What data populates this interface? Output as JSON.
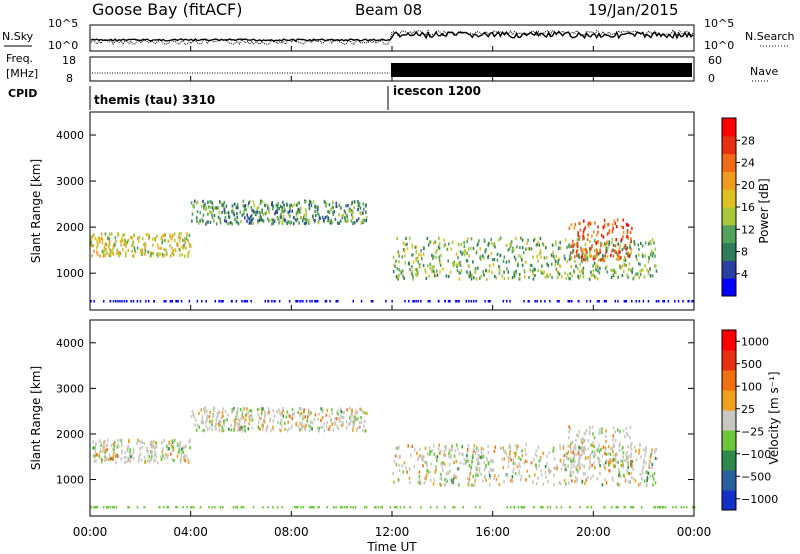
{
  "header": {
    "title": "Goose Bay (fitACF)",
    "beam": "Beam 08",
    "date": "19/Jan/2015"
  },
  "nsky_panel": {
    "left_label": "N.Sky",
    "right_label": "N.Search",
    "left_ticks": [
      "10^5",
      "10^0"
    ],
    "right_ticks": [
      "10^5",
      "10^0"
    ]
  },
  "freq_panel": {
    "left_label_line1": "Freq.",
    "left_label_line2": "[MHz]",
    "right_label": "Nave",
    "left_ticks": [
      "18",
      "8"
    ],
    "right_ticks": [
      "60",
      "0"
    ]
  },
  "cpid": {
    "label": "CPID",
    "segments": [
      {
        "name": "themis (tau) 3310",
        "start_hour": 0
      },
      {
        "name": "icescon 1200",
        "start_hour": 12
      }
    ]
  },
  "chart_data": [
    {
      "type": "heatmap",
      "panel": "power",
      "xlabel": "Time UT",
      "ylabel": "Slant Range [km]",
      "x_range_hours": [
        0,
        24
      ],
      "x_ticks": [
        "00:00",
        "04:00",
        "08:00",
        "12:00",
        "16:00",
        "20:00",
        "00:00"
      ],
      "y_range": [
        200,
        4500
      ],
      "y_ticks": [
        1000,
        2000,
        3000,
        4000
      ],
      "colorbar": {
        "label": "Power [dB]",
        "ticks": [
          "4",
          "8",
          "12",
          "16",
          "20",
          "24",
          "28"
        ],
        "colors": [
          "#0000ff",
          "#2a3fa0",
          "#2e7d58",
          "#52a05a",
          "#a8c83a",
          "#e0c020",
          "#f09a20",
          "#f06a18",
          "#e83010",
          "#ff0000"
        ]
      },
      "echo_bands": [
        {
          "name": "morning band",
          "hours": [
            0,
            4
          ],
          "range_km": [
            1400,
            1900
          ],
          "level_db": 14
        },
        {
          "name": "midday band",
          "hours": [
            4,
            11
          ],
          "range_km": [
            2100,
            2600
          ],
          "level_db": 8
        },
        {
          "name": "afternoon band",
          "hours": [
            12,
            22.5
          ],
          "range_km": [
            900,
            1800
          ],
          "level_db": 10
        },
        {
          "name": "strong patch",
          "hours": [
            19,
            21.5
          ],
          "range_km": [
            1300,
            2200
          ],
          "level_db": 22
        }
      ]
    },
    {
      "type": "heatmap",
      "panel": "velocity",
      "xlabel": "Time UT",
      "ylabel": "Slant Range [km]",
      "x_range_hours": [
        0,
        24
      ],
      "x_ticks": [
        "00:00",
        "04:00",
        "08:00",
        "12:00",
        "16:00",
        "20:00",
        "00:00"
      ],
      "y_range": [
        200,
        4500
      ],
      "y_ticks": [
        1000,
        2000,
        3000,
        4000
      ],
      "colorbar": {
        "label": "Velocity [m s⁻¹]",
        "ticks": [
          "1000",
          "500",
          "100",
          "25",
          "−25",
          "−100",
          "−500",
          "−1000"
        ],
        "colors": [
          "#1430c8",
          "#2a5fa0",
          "#2e8a4a",
          "#6cc838",
          "#c8c8c0",
          "#f0a020",
          "#f07010",
          "#e83010",
          "#ff0000"
        ]
      }
    }
  ]
}
